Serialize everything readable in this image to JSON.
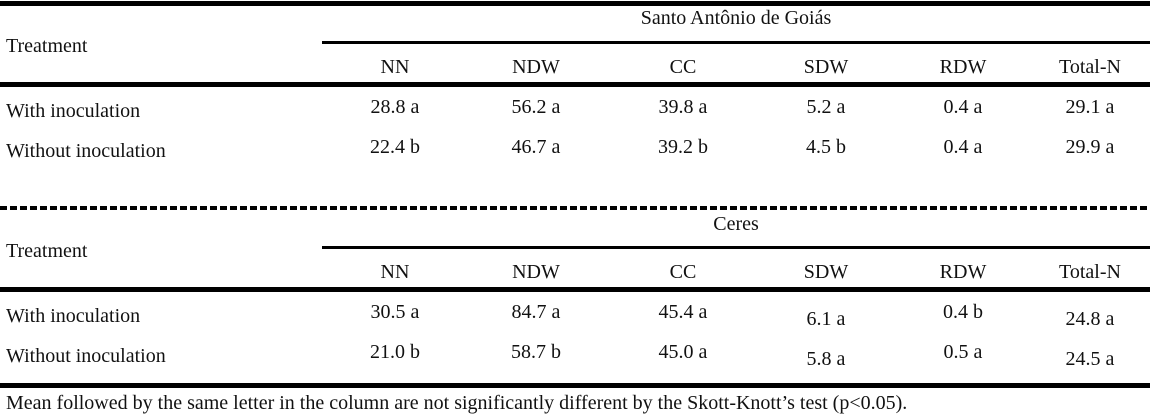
{
  "columns": [
    "NN",
    "NDW",
    "CC",
    "SDW",
    "RDW",
    "Total-N"
  ],
  "treatment_label": "Treatment",
  "blocks": [
    {
      "location": "Santo Antônio de Goiás",
      "rows": [
        {
          "treatment": "With inoculation",
          "values": [
            "28.8 a",
            "56.2 a",
            "39.8 a",
            "5.2 a",
            "0.4 a",
            "29.1 a"
          ]
        },
        {
          "treatment": "Without inoculation",
          "values": [
            "22.4 b",
            "46.7 a",
            "39.2 b",
            "4.5 b",
            "0.4 a",
            "29.9 a"
          ]
        }
      ]
    },
    {
      "location": "Ceres",
      "rows": [
        {
          "treatment": "With inoculation",
          "values": [
            "30.5 a",
            "84.7 a",
            "45.4 a",
            "6.1 a",
            "0.4 b",
            "24.8 a"
          ]
        },
        {
          "treatment": "Without inoculation",
          "values": [
            "21.0 b",
            "58.7 b",
            "45.0 a",
            "5.8 a",
            "0.5 a",
            "24.5 a"
          ]
        }
      ]
    }
  ],
  "footnote": "Mean followed by the same letter in the column are not significantly different by the Skott-Knott’s test (p<0.05)."
}
